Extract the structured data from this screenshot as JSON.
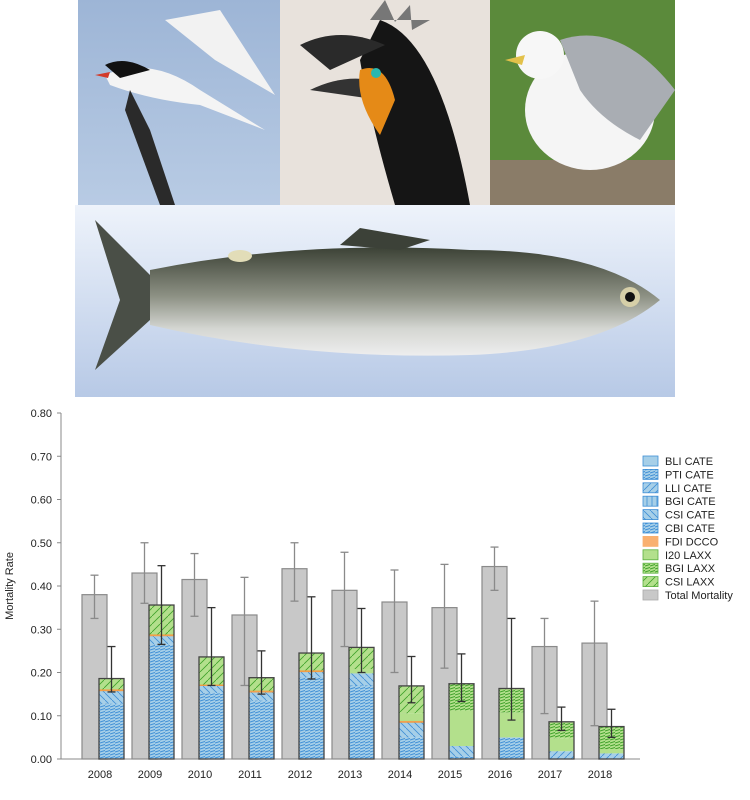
{
  "colors": {
    "total": "#c8c8c8",
    "CBI CATE": "#3f8fd6",
    "CSI CATE": "#a6cfe8",
    "BLI CATE": "#a6cfe8",
    "PTI CATE": "#4e9ad8",
    "LLI CATE": "#a6cfe8",
    "BGI CATE": "#a6cfe8",
    "FDI DCCO": "#f9b070",
    "I20 LAXX": "#b3e08c",
    "BGI LAXX": "#8fd06a",
    "CSI LAXX": "#b3e08c"
  },
  "photos": [
    "tern",
    "cormorant",
    "gull",
    "salmon smolt"
  ],
  "chart_data": {
    "type": "bar",
    "ylabel": "Mortality Rate",
    "ylim": [
      0,
      0.8
    ],
    "yticks": [
      "0.00",
      "0.10",
      "0.20",
      "0.30",
      "0.40",
      "0.50",
      "0.60",
      "0.70",
      "0.80"
    ],
    "categories": [
      "2008",
      "2009",
      "2010",
      "2011",
      "2012",
      "2013",
      "2014",
      "2015",
      "2016",
      "2017",
      "2018"
    ],
    "legend_position": "right",
    "legend": [
      "BLI CATE",
      "PTI CATE",
      "LLI CATE",
      "BGI CATE",
      "CSI CATE",
      "CBI CATE",
      "FDI DCCO",
      "I20 LAXX",
      "BGI LAXX",
      "CSI LAXX",
      "Total Mortality"
    ],
    "total_mortality": {
      "values": [
        0.38,
        0.43,
        0.415,
        0.333,
        0.44,
        0.39,
        0.363,
        0.35,
        0.445,
        0.26,
        0.268
      ],
      "err_low": [
        0.325,
        0.36,
        0.33,
        0.17,
        0.365,
        0.26,
        0.2,
        0.21,
        0.39,
        0.105,
        0.077
      ],
      "err_high": [
        0.425,
        0.5,
        0.475,
        0.42,
        0.5,
        0.478,
        0.437,
        0.45,
        0.49,
        0.325,
        0.365
      ]
    },
    "stacked_series": [
      {
        "name": "CBI CATE",
        "values": [
          0.128,
          0.265,
          0.152,
          0.135,
          0.19,
          0.17,
          0.05,
          0,
          0.05,
          0,
          0
        ]
      },
      {
        "name": "PTI CATE",
        "values": [
          0,
          0,
          0,
          0,
          0,
          0,
          0,
          0.005,
          0,
          0,
          0
        ]
      },
      {
        "name": "LLI CATE",
        "values": [
          0,
          0,
          0,
          0,
          0,
          0,
          0,
          0,
          0,
          0.018,
          0.013
        ]
      },
      {
        "name": "CSI CATE",
        "values": [
          0.03,
          0.02,
          0.018,
          0.02,
          0.012,
          0.028,
          0.035,
          0.025,
          0,
          0,
          0
        ]
      },
      {
        "name": "FDI DCCO",
        "values": [
          0.003,
          0.003,
          0.002,
          0.003,
          0.003,
          0,
          0.003,
          0,
          0,
          0,
          0
        ]
      },
      {
        "name": "I20 LAXX",
        "values": [
          0,
          0,
          0,
          0,
          0,
          0.01,
          0.018,
          0.082,
          0.058,
          0.03,
          0.01
        ]
      },
      {
        "name": "BGI LAXX",
        "values": [
          0,
          0,
          0,
          0,
          0,
          0,
          0,
          0.062,
          0.055,
          0.038,
          0.052
        ]
      },
      {
        "name": "CSI LAXX",
        "values": [
          0.025,
          0.068,
          0.064,
          0.03,
          0.04,
          0.05,
          0.063,
          0,
          0,
          0,
          0
        ]
      }
    ],
    "stacked_err_low": [
      0.155,
      0.265,
      0.17,
      0.15,
      0.185,
      0.2,
      0.13,
      0.133,
      0.09,
      0.066,
      0.05
    ],
    "stacked_err_high": [
      0.26,
      0.447,
      0.35,
      0.25,
      0.375,
      0.348,
      0.237,
      0.243,
      0.325,
      0.12,
      0.115
    ]
  }
}
